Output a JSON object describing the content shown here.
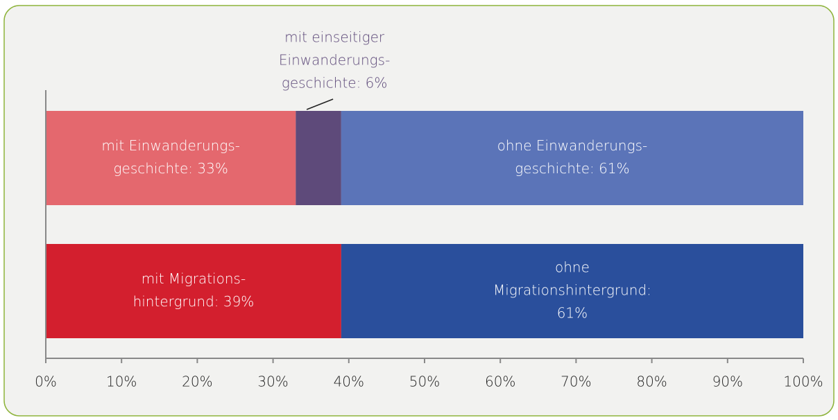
{
  "chart_data": {
    "type": "stacked-barh",
    "categories": [
      null,
      null
    ],
    "series": [
      {
        "color": "#e4686e",
        "values": [
          33,
          null
        ],
        "value_labels": [
          [
            "mit Einwanderungs-",
            "geschichte: 33%"
          ],
          null
        ]
      },
      {
        "color": "#5e4a7a",
        "values": [
          6,
          null
        ],
        "value_labels": [
          [
            "mit einseitiger",
            "Einwanderungs-",
            "geschichte: 6%"
          ],
          null
        ]
      },
      {
        "color": "#5b74b8",
        "values": [
          61,
          null
        ],
        "value_labels": [
          [
            "ohne Einwanderungs-",
            "geschichte: 61%"
          ],
          null
        ]
      },
      {
        "color": "#d31f2e",
        "values": [
          null,
          39
        ],
        "value_labels": [
          null,
          [
            "mit Migrations-",
            "hintergrund: 39%"
          ]
        ]
      },
      {
        "color": "#2a4f9c",
        "values": [
          null,
          61
        ],
        "value_labels": [
          null,
          [
            "ohne",
            "Migrationshintergrund:",
            "61%"
          ]
        ]
      }
    ],
    "xlim": [
      0,
      100
    ],
    "xticks": [
      {
        "value": 0,
        "label": "0%"
      },
      {
        "value": 10,
        "label": "10%"
      },
      {
        "value": 20,
        "label": "20%"
      },
      {
        "value": 30,
        "label": "30%"
      },
      {
        "value": 40,
        "label": "40%"
      },
      {
        "value": 50,
        "label": "50%"
      },
      {
        "value": 60,
        "label": "60%"
      },
      {
        "value": 70,
        "label": "70%"
      },
      {
        "value": 80,
        "label": "80%"
      },
      {
        "value": 90,
        "label": "90%"
      },
      {
        "value": 100,
        "label": "100%"
      }
    ]
  }
}
